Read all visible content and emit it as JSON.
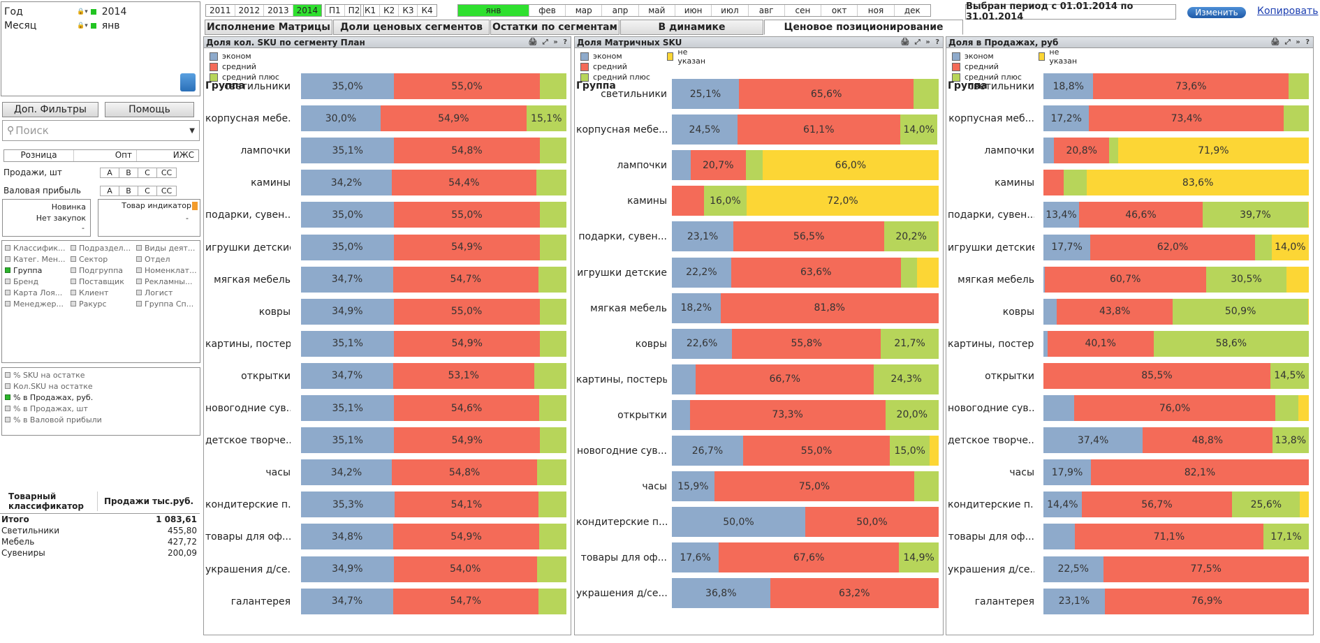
{
  "selections": [
    {
      "label": "Год",
      "value": "2014"
    },
    {
      "label": "Месяц",
      "value": "янв"
    }
  ],
  "buttons": {
    "extra_filters": "Доп. Фильтры",
    "help": "Помощь",
    "change": "Изменить",
    "copy": "Копировать"
  },
  "search": {
    "placeholder": "Поиск"
  },
  "channels": [
    "Розница",
    "Опт",
    "ИЖС"
  ],
  "metrics": [
    {
      "label": "Продажи, шт",
      "letters": [
        "A",
        "B",
        "C",
        "CC"
      ]
    },
    {
      "label": "Валовая прибыль",
      "letters": [
        "A",
        "B",
        "C",
        "CC"
      ]
    }
  ],
  "indicators": {
    "new": "Новинка",
    "no_purchase": "Нет закупок",
    "dash": "-",
    "goods_indicator": "Товар индикатор",
    "dash2": "-"
  },
  "dimensions": [
    [
      {
        "label": "Классифик...",
        "on": false
      },
      {
        "label": "Подраздел...",
        "on": false
      },
      {
        "label": "Виды деят...",
        "on": false
      }
    ],
    [
      {
        "label": "Катег. Мен...",
        "on": false
      },
      {
        "label": "Сектор",
        "on": false
      },
      {
        "label": "Отдел",
        "on": false
      }
    ],
    [
      {
        "label": "Группа",
        "on": true
      },
      {
        "label": "Подгруппа",
        "on": false
      },
      {
        "label": "Номенклат...",
        "on": false
      }
    ],
    [
      {
        "label": "Бренд",
        "on": false
      },
      {
        "label": "Поставщик",
        "on": false
      },
      {
        "label": "Рекламны...",
        "on": false
      }
    ],
    [
      {
        "label": "Карта Лоя...",
        "on": false
      },
      {
        "label": "Клиент",
        "on": false
      },
      {
        "label": "Логист",
        "on": false
      }
    ],
    [
      {
        "label": "Менеджер...",
        "on": false
      },
      {
        "label": "Ракурс",
        "on": false
      },
      {
        "label": "Группа Сп...",
        "on": false
      }
    ]
  ],
  "measures": [
    {
      "label": "% SKU на остатке",
      "on": false
    },
    {
      "label": "Кол.SKU на остатке",
      "on": false
    },
    {
      "label": "%  в Продажах, руб.",
      "on": true
    },
    {
      "label": "%  в Продажах, шт",
      "on": false
    },
    {
      "label": "% в Валовой прибыли",
      "on": false
    }
  ],
  "table": {
    "head1": "Товарный классификатор",
    "head2": "Продажи тыс.руб.",
    "rows": [
      {
        "name": "Итого",
        "value": "1 083,61",
        "bold": true
      },
      {
        "name": "Светильники",
        "value": "455,80",
        "bold": false
      },
      {
        "name": "Мебель",
        "value": "427,72",
        "bold": false
      },
      {
        "name": "Сувениры",
        "value": "200,09",
        "bold": false
      }
    ]
  },
  "years": [
    {
      "label": "2011",
      "on": false
    },
    {
      "label": "2012",
      "on": false
    },
    {
      "label": "2013",
      "on": false
    },
    {
      "label": "2014",
      "on": true
    }
  ],
  "halves": [
    "П1",
    "П2"
  ],
  "quarters": [
    "К1",
    "К2",
    "К3",
    "К4"
  ],
  "months": [
    {
      "label": "янв",
      "on": true
    },
    {
      "label": "фев",
      "on": false
    },
    {
      "label": "мар",
      "on": false
    },
    {
      "label": "апр",
      "on": false
    },
    {
      "label": "май",
      "on": false
    },
    {
      "label": "июн",
      "on": false
    },
    {
      "label": "июл",
      "on": false
    },
    {
      "label": "авг",
      "on": false
    },
    {
      "label": "сен",
      "on": false
    },
    {
      "label": "окт",
      "on": false
    },
    {
      "label": "ноя",
      "on": false
    },
    {
      "label": "дек",
      "on": false
    }
  ],
  "period_text": "Выбран период с 01.01.2014 по  31.01.2014",
  "tabs": [
    {
      "label": "Исполнение Матрицы",
      "active": false
    },
    {
      "label": "Доли ценовых сегментов",
      "active": false
    },
    {
      "label": "Остатки по сегментам",
      "active": false
    },
    {
      "label": "В динамике",
      "active": false
    },
    {
      "label": "Ценовое позиционирование",
      "active": true
    }
  ],
  "colors": {
    "econom": "#8eaacb",
    "middle": "#f46b58",
    "middle_plus": "#b7d55a",
    "unspecified": "#fcd635"
  },
  "legend_labels": {
    "econom": "эконом",
    "middle": "средний",
    "middle_plus": "средний плюс",
    "unspecified": "не указан"
  },
  "group_label": "Группа",
  "chart_data": [
    {
      "type": "bar",
      "title": "Доля кол. SKU по сегменту План",
      "stacked": "100%",
      "legend": [
        "эконом",
        "средний",
        "средний плюс"
      ],
      "categories": [
        "светильники",
        "корпусная мебе...",
        "лампочки",
        "камины",
        "подарки, сувен...",
        "игрушки детские",
        "мягкая мебель",
        "ковры",
        "картины, постеры",
        "открытки",
        "новогодние сув...",
        "детское творче...",
        "часы",
        "кондитерские п...",
        "товары для оф...",
        "украшения д/се...",
        "галантерея"
      ],
      "series": [
        {
          "name": "эконом",
          "values": [
            35.0,
            30.0,
            35.1,
            34.2,
            35.0,
            35.0,
            34.7,
            34.9,
            35.1,
            34.7,
            35.1,
            35.1,
            34.2,
            35.3,
            34.8,
            34.9,
            34.7
          ]
        },
        {
          "name": "средний",
          "values": [
            55.0,
            54.9,
            54.8,
            54.4,
            55.0,
            54.9,
            54.7,
            55.0,
            54.9,
            53.1,
            54.6,
            54.9,
            54.8,
            54.1,
            54.9,
            54.0,
            54.7
          ]
        },
        {
          "name": "средний плюс",
          "values": [
            10.0,
            15.1,
            10.1,
            11.4,
            10.0,
            10.1,
            10.6,
            10.1,
            10.0,
            12.2,
            10.3,
            10.0,
            11.0,
            10.6,
            10.3,
            11.1,
            10.6
          ]
        }
      ],
      "labels": [
        [
          "35,0%",
          "55,0%",
          ""
        ],
        [
          "30,0%",
          "54,9%",
          "15,1%"
        ],
        [
          "35,1%",
          "54,8%",
          ""
        ],
        [
          "34,2%",
          "54,4%",
          ""
        ],
        [
          "35,0%",
          "55,0%",
          ""
        ],
        [
          "35,0%",
          "54,9%",
          ""
        ],
        [
          "34,7%",
          "54,7%",
          ""
        ],
        [
          "34,9%",
          "55,0%",
          ""
        ],
        [
          "35,1%",
          "54,9%",
          ""
        ],
        [
          "34,7%",
          "53,1%",
          ""
        ],
        [
          "35,1%",
          "54,6%",
          ""
        ],
        [
          "35,1%",
          "54,9%",
          ""
        ],
        [
          "34,2%",
          "54,8%",
          ""
        ],
        [
          "35,3%",
          "54,1%",
          ""
        ],
        [
          "34,8%",
          "54,9%",
          ""
        ],
        [
          "34,9%",
          "54,0%",
          ""
        ],
        [
          "34,7%",
          "54,7%",
          ""
        ]
      ]
    },
    {
      "type": "bar",
      "title": "Доля Матричных SKU",
      "stacked": "100%",
      "legend": [
        "эконом",
        "средний",
        "средний плюс",
        "не указан"
      ],
      "categories": [
        "светильники",
        "корпусная мебе...",
        "лампочки",
        "камины",
        "подарки, сувен...",
        "игрушки детские",
        "мягкая мебель",
        "ковры",
        "картины, постеры",
        "открытки",
        "новогодние сув...",
        "часы",
        "кондитерские п...",
        "товары для оф...",
        "украшения д/се..."
      ],
      "series": [
        {
          "name": "эконом",
          "values": [
            25.1,
            24.5,
            7.0,
            0,
            23.1,
            22.2,
            18.2,
            22.6,
            9.0,
            6.7,
            26.7,
            15.9,
            50.0,
            17.6,
            36.8
          ]
        },
        {
          "name": "средний",
          "values": [
            65.6,
            61.1,
            20.7,
            12.0,
            56.5,
            63.6,
            81.8,
            55.8,
            66.7,
            73.3,
            55.0,
            75.0,
            50.0,
            67.6,
            63.2
          ]
        },
        {
          "name": "средний плюс",
          "values": [
            9.3,
            14.0,
            6.3,
            16.0,
            20.2,
            6.0,
            0,
            21.7,
            24.3,
            20.0,
            15.0,
            9.1,
            0,
            14.9,
            0
          ]
        },
        {
          "name": "не указан",
          "values": [
            0,
            0,
            66.0,
            72.0,
            0.2,
            8.2,
            0,
            0,
            0,
            0,
            3.3,
            0,
            0,
            0,
            0
          ]
        }
      ],
      "labels": [
        [
          "25,1%",
          "65,6%",
          "",
          ""
        ],
        [
          "24,5%",
          "61,1%",
          "14,0%",
          ""
        ],
        [
          "",
          "20,7%",
          "",
          "66,0%"
        ],
        [
          "",
          "",
          "16,0%",
          "72,0%"
        ],
        [
          "23,1%",
          "56,5%",
          "20,2%",
          ""
        ],
        [
          "22,2%",
          "63,6%",
          "",
          ""
        ],
        [
          "18,2%",
          "81,8%",
          "",
          ""
        ],
        [
          "22,6%",
          "55,8%",
          "21,7%",
          ""
        ],
        [
          "",
          "66,7%",
          "24,3%",
          ""
        ],
        [
          "",
          "73,3%",
          "20,0%",
          ""
        ],
        [
          "26,7%",
          "55,0%",
          "15,0%",
          ""
        ],
        [
          "15,9%",
          "75,0%",
          "",
          ""
        ],
        [
          "50,0%",
          "50,0%",
          "",
          ""
        ],
        [
          "17,6%",
          "67,6%",
          "14,9%",
          ""
        ],
        [
          "36,8%",
          "63,2%",
          "",
          ""
        ]
      ]
    },
    {
      "type": "bar",
      "title": "Доля в Продажах, руб",
      "stacked": "100%",
      "legend": [
        "эконом",
        "средний",
        "средний плюс",
        "не указан"
      ],
      "categories": [
        "светильники",
        "корпусная меб...",
        "лампочки",
        "камины",
        "подарки, сувен...",
        "игрушки детские",
        "мягкая мебель",
        "ковры",
        "картины, постеры",
        "открытки",
        "новогодние сув...",
        "детское творче...",
        "часы",
        "кондитерские п...",
        "товары для оф...",
        "украшения д/се...",
        "галантерея"
      ],
      "series": [
        {
          "name": "эконом",
          "values": [
            18.8,
            17.2,
            4.0,
            0,
            13.4,
            17.7,
            0.5,
            5.0,
            1.5,
            0,
            11.5,
            37.4,
            17.9,
            14.4,
            11.8,
            22.5,
            23.1
          ]
        },
        {
          "name": "средний",
          "values": [
            73.6,
            73.4,
            20.8,
            7.5,
            46.6,
            62.0,
            60.7,
            43.8,
            40.1,
            85.5,
            76.0,
            48.8,
            82.1,
            56.7,
            71.1,
            77.5,
            76.9
          ]
        },
        {
          "name": "средний плюс",
          "values": [
            7.6,
            9.4,
            3.3,
            8.9,
            39.7,
            6.3,
            30.5,
            50.9,
            58.6,
            14.5,
            8.5,
            13.8,
            0,
            25.6,
            17.1,
            0,
            0
          ]
        },
        {
          "name": "не указан",
          "values": [
            0,
            0,
            71.9,
            83.6,
            0.3,
            14.0,
            8.3,
            0.3,
            0,
            0,
            4.0,
            0,
            0,
            3.3,
            0,
            0,
            0
          ]
        }
      ],
      "labels": [
        [
          "18,8%",
          "73,6%",
          "",
          ""
        ],
        [
          "17,2%",
          "73,4%",
          "",
          ""
        ],
        [
          "",
          "20,8%",
          "",
          "71,9%"
        ],
        [
          "",
          "",
          "",
          "83,6%"
        ],
        [
          "13,4%",
          "46,6%",
          "39,7%",
          ""
        ],
        [
          "17,7%",
          "62,0%",
          "",
          "14,0%"
        ],
        [
          "",
          "60,7%",
          "30,5%",
          ""
        ],
        [
          "",
          "43,8%",
          "50,9%",
          ""
        ],
        [
          "",
          "40,1%",
          "58,6%",
          ""
        ],
        [
          "",
          "85,5%",
          "14,5%",
          ""
        ],
        [
          "",
          "76,0%",
          "",
          ""
        ],
        [
          "37,4%",
          "48,8%",
          "13,8%",
          ""
        ],
        [
          "17,9%",
          "82,1%",
          "",
          ""
        ],
        [
          "14,4%",
          "56,7%",
          "25,6%",
          ""
        ],
        [
          "",
          "71,1%",
          "17,1%",
          ""
        ],
        [
          "22,5%",
          "77,5%",
          "",
          ""
        ],
        [
          "23,1%",
          "76,9%",
          "",
          ""
        ]
      ]
    }
  ]
}
